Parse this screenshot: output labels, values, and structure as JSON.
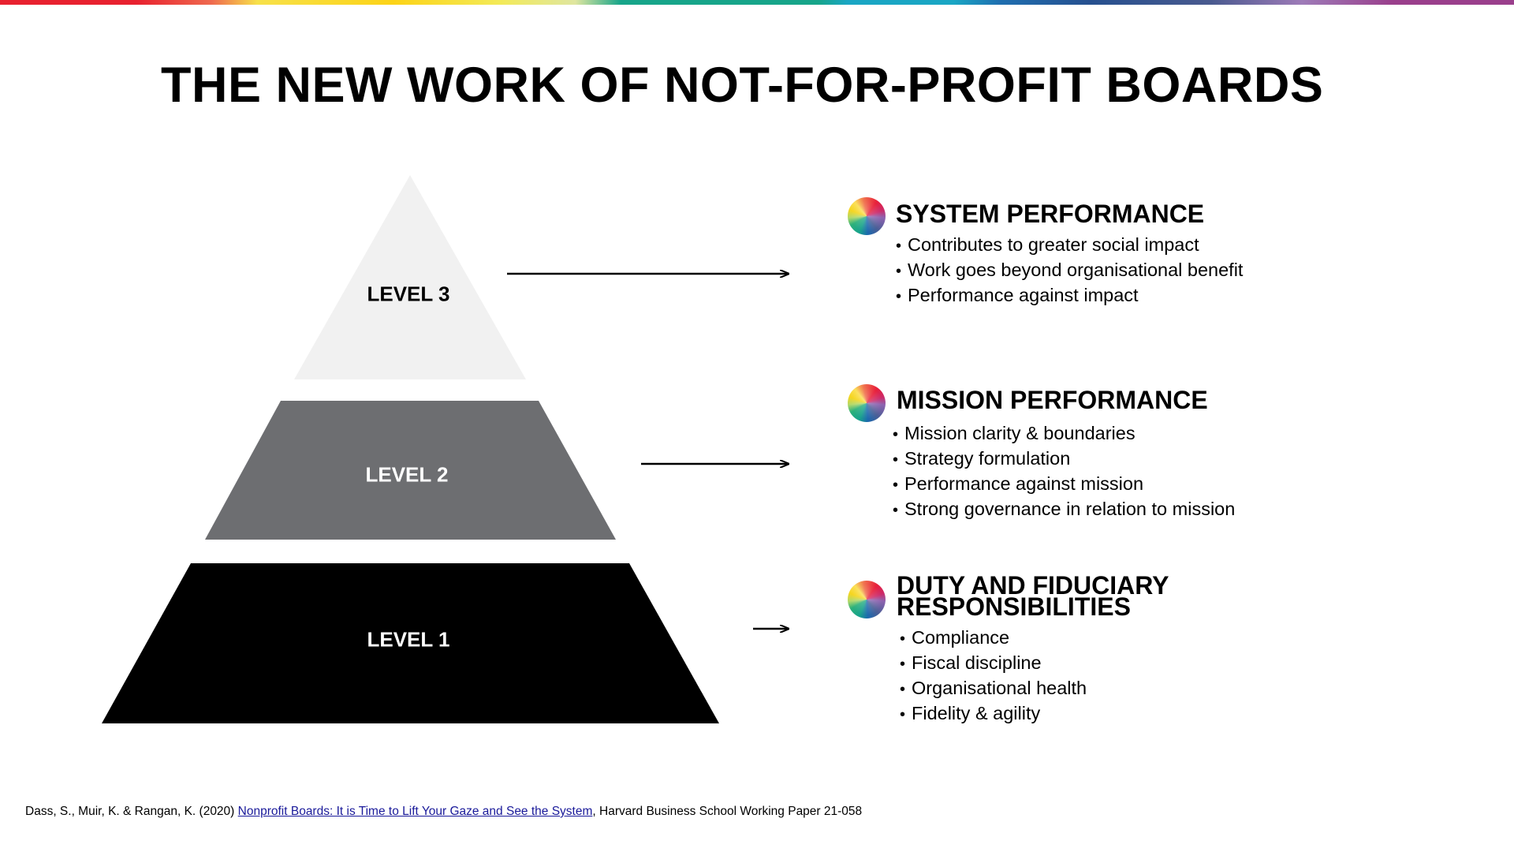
{
  "title": "THE NEW WORK OF NOT-FOR-PROFIT BOARDS",
  "pyramid": {
    "levels": [
      {
        "label": "LEVEL 3",
        "color": "#f1f1f1",
        "text_color": "#000000"
      },
      {
        "label": "LEVEL 2",
        "color": "#6d6e71",
        "text_color": "#ffffff"
      },
      {
        "label": "LEVEL 1",
        "color": "#000000",
        "text_color": "#ffffff"
      }
    ]
  },
  "sections": [
    {
      "icon": "color-wheel-icon",
      "heading": "SYSTEM PERFORMANCE",
      "bullets": [
        "Contributes to greater social impact",
        "Work goes beyond organisational benefit",
        "Performance against impact"
      ]
    },
    {
      "icon": "color-wheel-icon",
      "heading": "MISSION PERFORMANCE",
      "bullets": [
        "Mission clarity & boundaries",
        "Strategy formulation",
        "Performance against mission",
        "Strong governance in relation to mission"
      ]
    },
    {
      "icon": "color-wheel-icon",
      "heading_line1": "DUTY AND FIDUCIARY",
      "heading_line2": "RESPONSIBILITIES",
      "bullets": [
        "Compliance",
        "Fiscal discipline",
        "Organisational health",
        "Fidelity & agility"
      ]
    }
  ],
  "footer": {
    "prefix": "Dass, S., Muir, K. & Rangan, K. (2020) ",
    "link": "Nonprofit Boards: It is Time to Lift Your Gaze and See the System",
    "suffix": ", Harvard Business School Working Paper 21-058"
  }
}
